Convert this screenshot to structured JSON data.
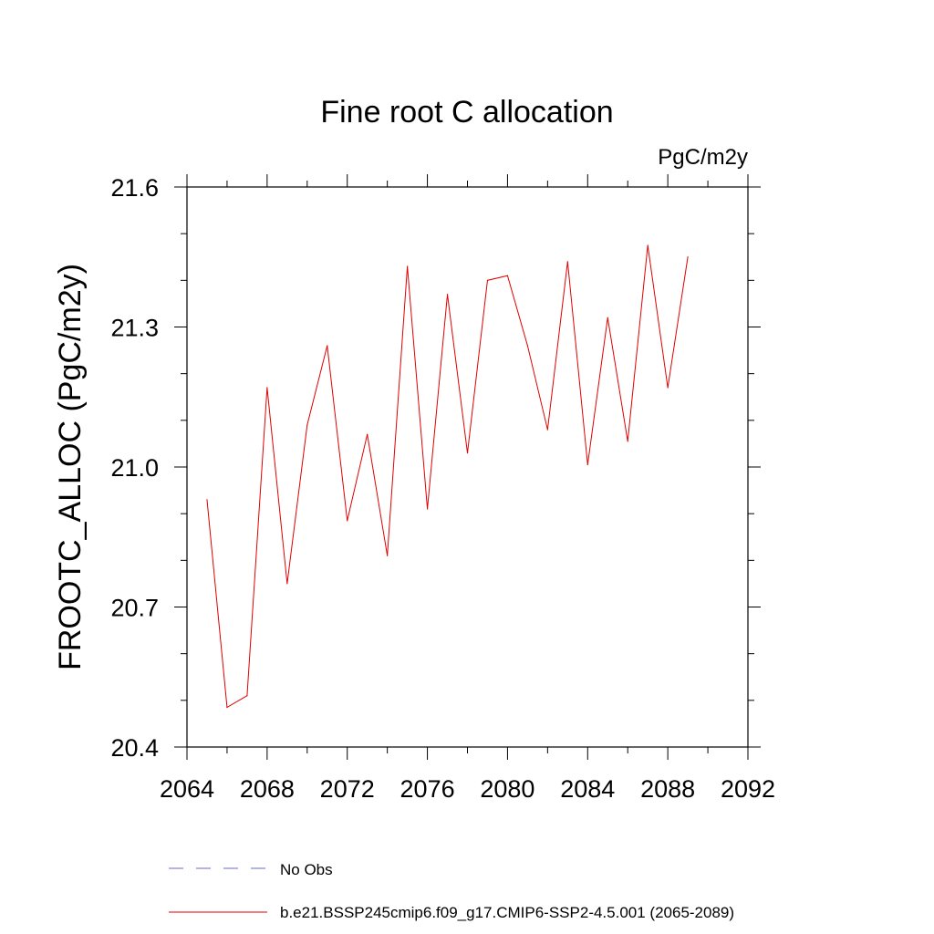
{
  "chart_data": {
    "type": "line",
    "title": "Fine root C allocation",
    "units_label": "PgC/m2y",
    "ylabel": "FROOTC_ALLOC  (PgC/m2y)",
    "xlabel": "",
    "xlim": [
      2064,
      2092
    ],
    "ylim": [
      20.4,
      21.6
    ],
    "x_ticks": [
      2064,
      2068,
      2072,
      2076,
      2080,
      2084,
      2088,
      2092
    ],
    "x_tick_labels": [
      "2064",
      "2068",
      "2072",
      "2076",
      "2080",
      "2084",
      "2088",
      "2092"
    ],
    "x_minor_step": 2,
    "y_ticks": [
      20.4,
      20.7,
      21.0,
      21.3,
      21.6
    ],
    "y_tick_labels": [
      "20.4",
      "20.7",
      "21.0",
      "21.3",
      "21.6"
    ],
    "y_minor_step": 0.1,
    "grid": false,
    "series": [
      {
        "name": "b.e21.BSSP245cmip6.f09_g17.CMIP6-SSP2-4.5.001 (2065-2089)",
        "color": "#e00000",
        "x": [
          2065,
          2066,
          2067,
          2068,
          2069,
          2070,
          2071,
          2072,
          2073,
          2074,
          2075,
          2076,
          2077,
          2078,
          2079,
          2080,
          2081,
          2082,
          2083,
          2084,
          2085,
          2086,
          2087,
          2088,
          2089
        ],
        "values": [
          20.93,
          20.485,
          20.51,
          21.17,
          20.75,
          21.09,
          21.26,
          20.885,
          21.07,
          20.81,
          21.43,
          20.91,
          21.37,
          21.03,
          21.4,
          21.41,
          21.26,
          21.08,
          21.44,
          21.005,
          21.32,
          21.055,
          21.475,
          21.17,
          21.45
        ]
      }
    ],
    "legend": {
      "placement": "bottom",
      "entries": [
        {
          "label": "No Obs",
          "style": "dashed",
          "color": "#6a6ad0"
        },
        {
          "label": "b.e21.BSSP245cmip6.f09_g17.CMIP6-SSP2-4.5.001 (2065-2089)",
          "style": "solid",
          "color": "#e00000"
        }
      ]
    }
  }
}
